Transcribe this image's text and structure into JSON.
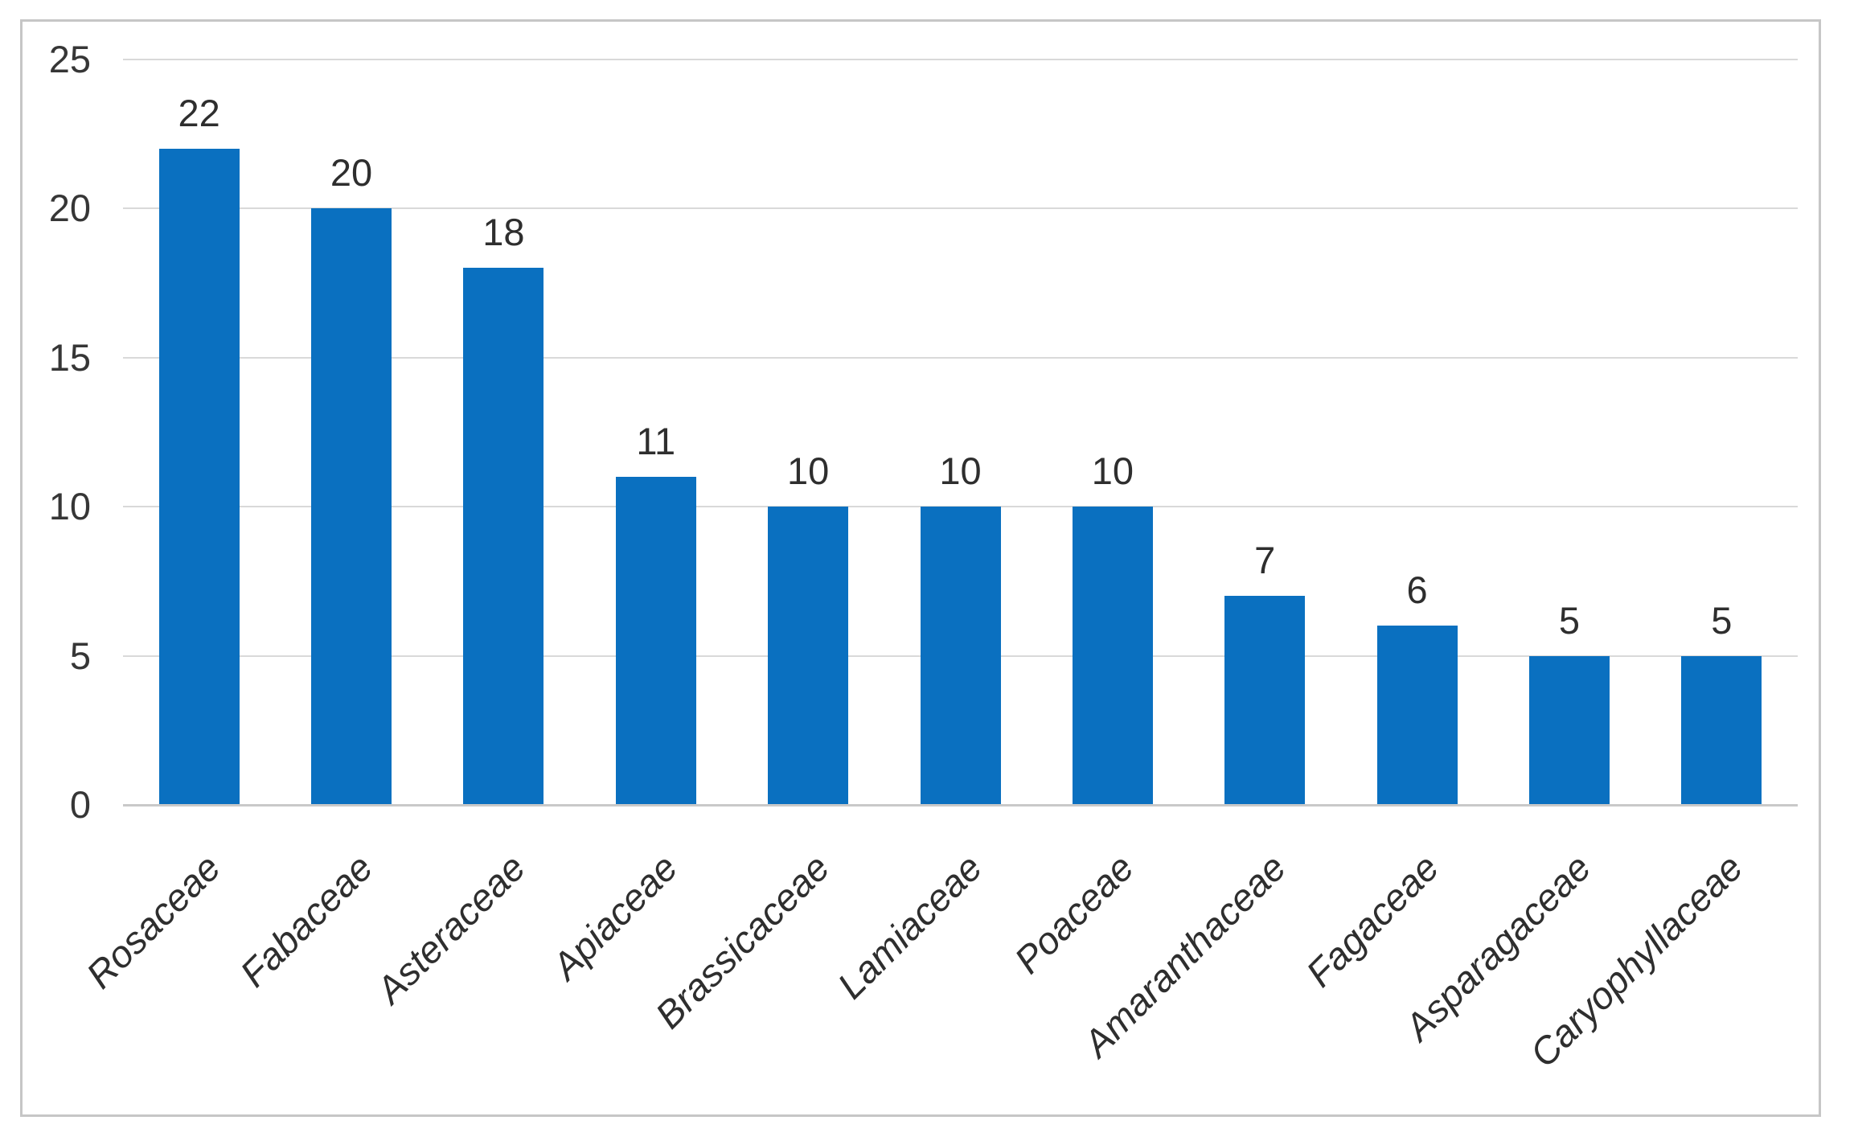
{
  "chart_data": {
    "type": "bar",
    "title": "",
    "xlabel": "",
    "ylabel": "",
    "categories": [
      "Rosaceae",
      "Fabaceae",
      "Asteraceae",
      "Apiaceae",
      "Brassicaceae",
      "Lamiaceae",
      "Poaceae",
      "Amaranthaceae",
      "Fagaceae",
      "Asparagaceae",
      "Caryophyllaceae"
    ],
    "values": [
      22,
      20,
      18,
      11,
      10,
      10,
      10,
      7,
      6,
      5,
      5
    ],
    "data_labels": [
      "22",
      "20",
      "18",
      "11",
      "10",
      "10",
      "10",
      "7",
      "6",
      "5",
      "5"
    ],
    "ylim": [
      0,
      25
    ],
    "yticks": [
      "0",
      "5",
      "10",
      "15",
      "20",
      "25"
    ],
    "ytick_values": [
      0,
      5,
      10,
      15,
      20,
      25
    ],
    "grid": "horizontal",
    "legend": "none",
    "colors": {
      "bar": "#0A70C0",
      "gridline": "#D9D9D9",
      "axis_line": "#C9C9C9",
      "frame_border": "#C6C6C6",
      "label_text": "#2E2E2E"
    }
  }
}
